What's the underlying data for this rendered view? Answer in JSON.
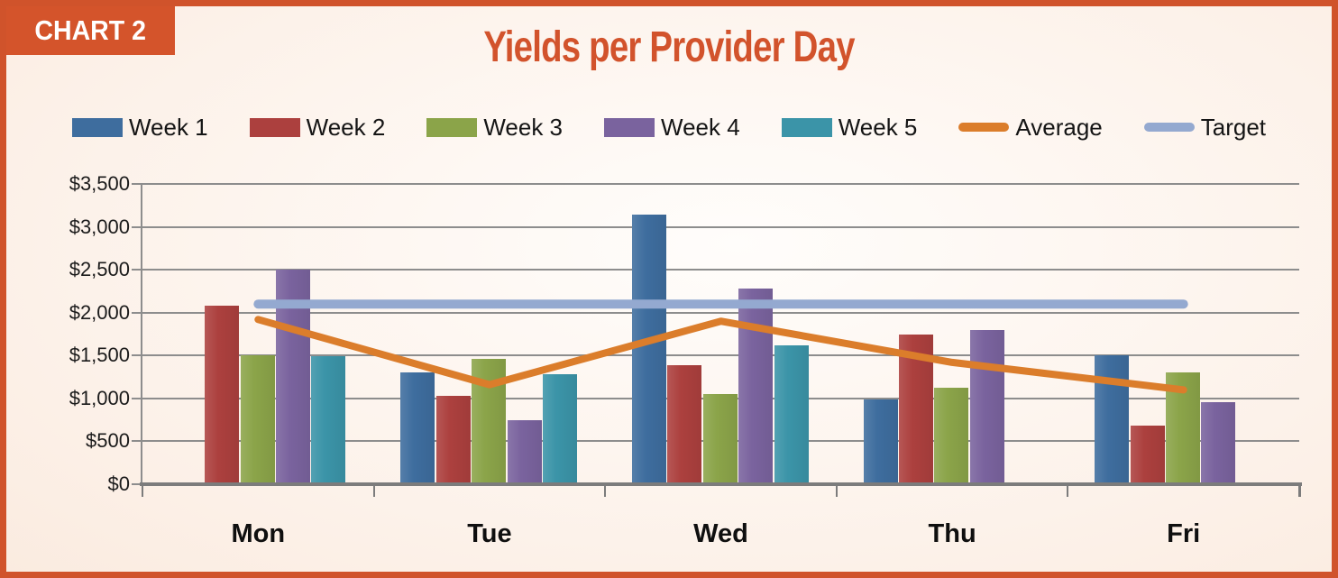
{
  "panel": {
    "tag": "CHART 2"
  },
  "chart_data": {
    "type": "bar",
    "title": "Yields per Provider Day",
    "categories": [
      "Mon",
      "Tue",
      "Wed",
      "Thu",
      "Fri"
    ],
    "series": [
      {
        "name": "Week 1",
        "kind": "bar",
        "color": "#3E6D9E",
        "values": [
          null,
          1300,
          3140,
          990,
          1500
        ]
      },
      {
        "name": "Week 2",
        "kind": "bar",
        "color": "#AC403E",
        "values": [
          2080,
          1030,
          1390,
          1750,
          680
        ]
      },
      {
        "name": "Week 3",
        "kind": "bar",
        "color": "#8BA449",
        "values": [
          1500,
          1460,
          1050,
          1130,
          1300
        ]
      },
      {
        "name": "Week 4",
        "kind": "bar",
        "color": "#7A639E",
        "values": [
          2500,
          750,
          2280,
          1800,
          960
        ]
      },
      {
        "name": "Week 5",
        "kind": "bar",
        "color": "#3B94A8",
        "values": [
          1490,
          1280,
          1620,
          null,
          null
        ]
      },
      {
        "name": "Average",
        "kind": "line",
        "color": "#DB7D2B",
        "values": [
          1920,
          1160,
          1900,
          1420,
          1100
        ]
      },
      {
        "name": "Target",
        "kind": "line",
        "color": "#94A9D0",
        "values": [
          2100,
          2100,
          2100,
          2100,
          2100
        ]
      }
    ],
    "ylim": [
      0,
      3500
    ],
    "ytick_step": 500,
    "ytick_labels": [
      "$0",
      "$500",
      "$1,000",
      "$1,500",
      "$2,000",
      "$2,500",
      "$3,000",
      "$3,500"
    ],
    "grid": true,
    "legend_position": "top",
    "colors": {
      "accent": "#D0532B",
      "title_text": "#D2532C",
      "tag_background": "#D4542B",
      "tag_text": "#FFFFFF",
      "gridline": "#8D8D8D",
      "axis": "#7C7C7C",
      "text": "#1B1B1B"
    }
  }
}
